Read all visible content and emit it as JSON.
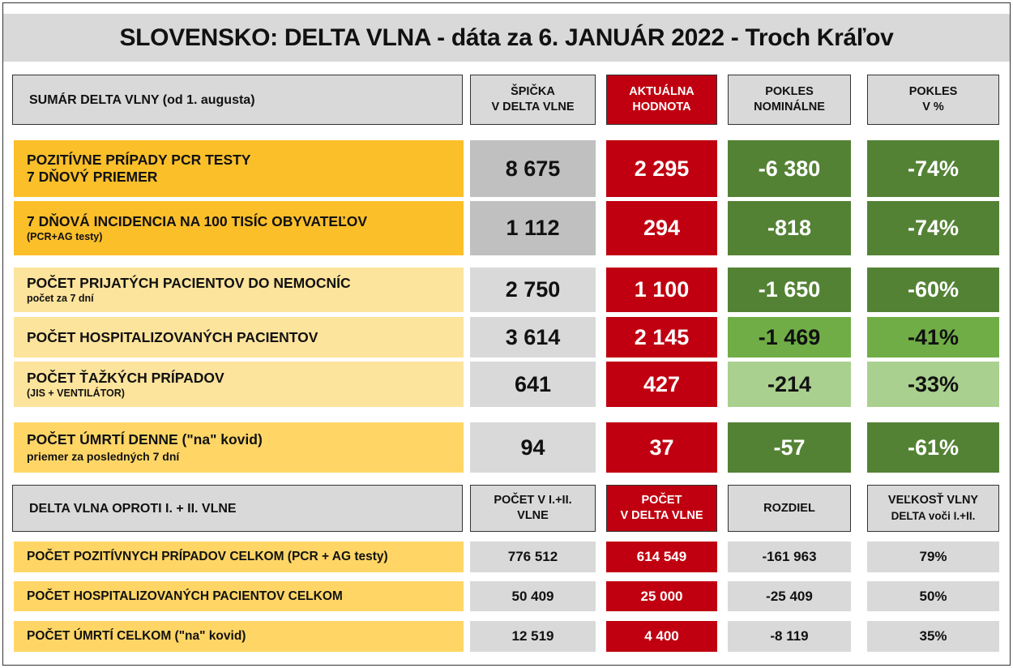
{
  "title": "SLOVENSKO:  DELTA VLNA - dáta za 6. JANUÁR 2022 - Troch Kráľov",
  "summary": {
    "header": {
      "label": "SUMÁR DELTA VLNY (od 1. augusta)",
      "col_peak": [
        "ŠPIČKA",
        "V DELTA VLNE"
      ],
      "col_current": [
        "AKTUÁLNA",
        "HODNOTA"
      ],
      "col_drop_nominal": [
        "POKLES",
        "NOMINÁLNE"
      ],
      "col_drop_pct": [
        "POKLES",
        "V %"
      ]
    },
    "rows": [
      {
        "label": "POZITÍVNE PRÍPADY PCR TESTY",
        "label2": "7 DŇOVÝ PRIEMER",
        "sub": "",
        "peak": "8 675",
        "current": "2 295",
        "drop_nominal": "-6 380",
        "drop_pct": "-74%"
      },
      {
        "label": "7 DŇOVÁ INCIDENCIA NA 100 TISÍC OBYVATEĽOV",
        "label2": "",
        "sub": "(PCR+AG testy)",
        "peak": "1 112",
        "current": "294",
        "drop_nominal": "-818",
        "drop_pct": "-74%"
      },
      {
        "label": "POČET PRIJATÝCH PACIENTOV DO NEMOCNÍC",
        "label2": "",
        "sub": "počet za 7 dní",
        "peak": "2 750",
        "current": "1 100",
        "drop_nominal": "-1 650",
        "drop_pct": "-60%"
      },
      {
        "label": "POČET HOSPITALIZOVANÝCH PACIENTOV",
        "label2": "",
        "sub": "",
        "peak": "3 614",
        "current": "2 145",
        "drop_nominal": "-1 469",
        "drop_pct": "-41%"
      },
      {
        "label": "POČET ŤAŽKÝCH PRÍPADOV",
        "label2": "",
        "sub": "(JIS + VENTILÁTOR)",
        "peak": "641",
        "current": "427",
        "drop_nominal": "-214",
        "drop_pct": "-33%"
      },
      {
        "label": "POČET ÚMRTÍ DENNE (\"na\" kovid)",
        "label2": "",
        "sub": "priemer za posledných 7 dní",
        "peak": "94",
        "current": "37",
        "drop_nominal": "-57",
        "drop_pct": "-61%"
      }
    ]
  },
  "comparison": {
    "header": {
      "label": "DELTA VLNA OPROTI I. + II. VLNE",
      "col_prev": [
        "POČET V I.+II.",
        "VLNE"
      ],
      "col_delta": [
        "POČET",
        "V DELTA VLNE"
      ],
      "col_diff": [
        "ROZDIEL"
      ],
      "col_ratio": [
        "VEĽKOSŤ VLNY",
        "DELTA voči I.+II."
      ]
    },
    "rows": [
      {
        "label": "POČET POZITÍVNYCH PRÍPADOV CELKOM  (PCR + AG testy)",
        "prev": "776 512",
        "delta": "614 549",
        "diff": "-161 963",
        "ratio": "79%"
      },
      {
        "label": "POČET HOSPITALIZOVANÝCH PACIENTOV CELKOM",
        "prev": "50 409",
        "delta": "25 000",
        "diff": "-25 409",
        "ratio": "50%"
      },
      {
        "label": "POČET ÚMRTÍ CELKOM  (\"na\" kovid)",
        "prev": "12 519",
        "delta": "4 400",
        "diff": "-8 119",
        "ratio": "35%"
      }
    ]
  },
  "colors": {
    "title_bg": "#d9d9d9",
    "header_gray": "#d9d9d9",
    "accent_red": "#c00010",
    "label_orange_dark": "#fbbf2a",
    "label_orange_mid": "#ffd666",
    "label_orange_light": "#fde49c",
    "peak_gray_dark": "#c0c0c0",
    "peak_gray_light": "#d9d9d9",
    "green_dark": "#548235",
    "green_mid": "#70ad47",
    "green_light": "#a9d08e"
  }
}
